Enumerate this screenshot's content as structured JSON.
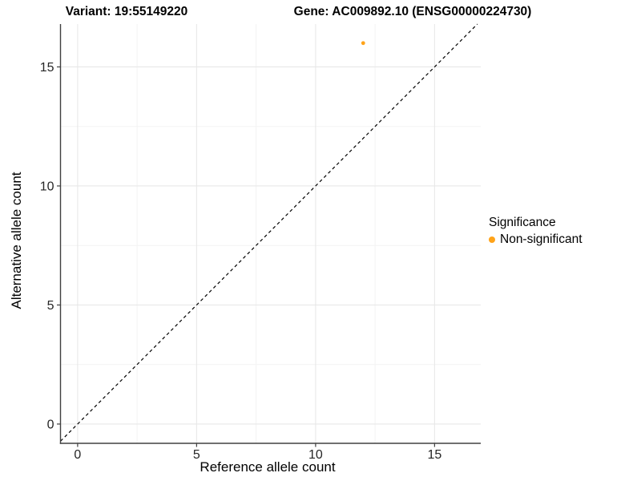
{
  "chart_data": {
    "type": "scatter",
    "titles": {
      "variant": "Variant: 19:55149220",
      "gene": "Gene: AC009892.10 (ENSG00000224730)"
    },
    "xlabel": "Reference allele count",
    "ylabel": "Alternative allele count",
    "xlim": [
      -0.72,
      16.94
    ],
    "ylim": [
      -0.81,
      16.8
    ],
    "xticks": [
      0,
      5,
      10,
      15
    ],
    "yticks": [
      0,
      5,
      10,
      15
    ],
    "minor_ticks": [
      2.5,
      7.5,
      12.5
    ],
    "grid": "major+minor",
    "points": [
      {
        "x": 12,
        "y": 16,
        "series": "Non-significant"
      }
    ],
    "reference_line": {
      "type": "y=x",
      "style": "dashed",
      "color": "#000000"
    },
    "legend": {
      "title": "Significance",
      "position": "right",
      "items": [
        {
          "label": "Non-significant",
          "color": "#FFA319"
        }
      ]
    }
  },
  "colors": {
    "point": "#FFA319",
    "axis_line": "#404040",
    "tick_text": "#262626",
    "grid_major": "#E8E8E8",
    "grid_minor": "#F3F3F3",
    "background": "#FFFFFF"
  }
}
